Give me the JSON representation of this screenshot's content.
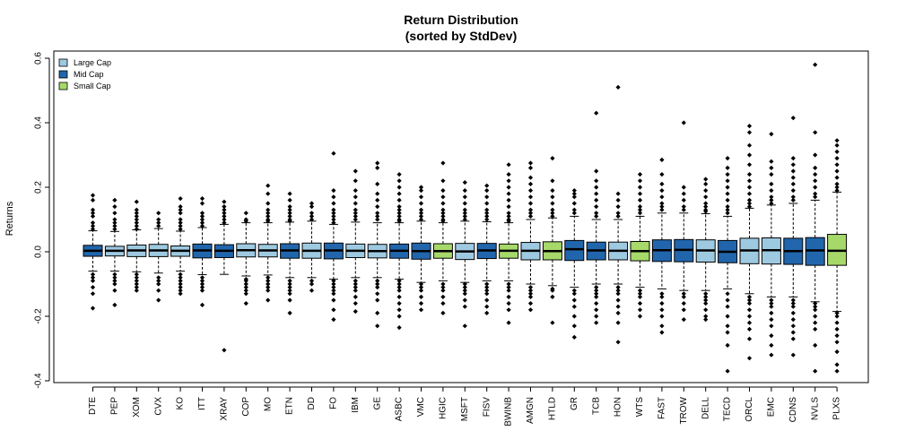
{
  "chart_data": {
    "type": "box",
    "title_line1": "Return Distribution",
    "title_line2": "(sorted by StdDev)",
    "xlabel": "",
    "ylabel": "Returns",
    "ylim": [
      -0.4,
      0.6
    ],
    "yticks": [
      -0.4,
      -0.2,
      0.0,
      0.2,
      0.4,
      0.6
    ],
    "ytick_labels": [
      "-0.4",
      "-0.2",
      "0.0",
      "0.2",
      "0.4",
      "0.6"
    ],
    "legend_position": "top-left",
    "legend": [
      {
        "name": "Large Cap",
        "color": "#9ecae1"
      },
      {
        "name": "Mid Cap",
        "color": "#2166ac"
      },
      {
        "name": "Small Cap",
        "color": "#a6d96a"
      }
    ],
    "categories": [
      "DTE",
      "PEP",
      "XOM",
      "CVX",
      "KO",
      "ITT",
      "XRAY",
      "COP",
      "MO",
      "ETN",
      "DD",
      "FO",
      "IBM",
      "GE",
      "ASBC",
      "VMC",
      "HGIC",
      "MSFT",
      "FISV",
      "BWINB",
      "AMGN",
      "HTLD",
      "GR",
      "TCB",
      "HON",
      "WTS",
      "FAST",
      "TROW",
      "DELL",
      "TECD",
      "ORCL",
      "EMC",
      "CDNS",
      "NVLS",
      "PLXS"
    ],
    "groups": [
      "Mid Cap",
      "Large Cap",
      "Large Cap",
      "Large Cap",
      "Large Cap",
      "Mid Cap",
      "Mid Cap",
      "Large Cap",
      "Large Cap",
      "Mid Cap",
      "Large Cap",
      "Mid Cap",
      "Large Cap",
      "Large Cap",
      "Mid Cap",
      "Mid Cap",
      "Small Cap",
      "Large Cap",
      "Mid Cap",
      "Small Cap",
      "Large Cap",
      "Small Cap",
      "Mid Cap",
      "Mid Cap",
      "Large Cap",
      "Small Cap",
      "Mid Cap",
      "Mid Cap",
      "Large Cap",
      "Mid Cap",
      "Large Cap",
      "Large Cap",
      "Mid Cap",
      "Mid Cap",
      "Small Cap"
    ],
    "medians": [
      0.003,
      0.003,
      0.004,
      0.004,
      0.003,
      0.004,
      0.003,
      0.005,
      0.004,
      0.004,
      0.003,
      0.004,
      0.003,
      0.002,
      0.003,
      0.002,
      0.002,
      0.001,
      0.004,
      0.003,
      0.003,
      0.002,
      0.008,
      0.004,
      0.003,
      0.002,
      0.005,
      0.006,
      0.004,
      0.0,
      0.004,
      0.005,
      0.002,
      0.004,
      0.003
    ],
    "q1": [
      -0.014,
      -0.013,
      -0.015,
      -0.015,
      -0.014,
      -0.019,
      -0.018,
      -0.016,
      -0.016,
      -0.02,
      -0.02,
      -0.022,
      -0.018,
      -0.019,
      -0.02,
      -0.023,
      -0.02,
      -0.024,
      -0.021,
      -0.02,
      -0.025,
      -0.025,
      -0.027,
      -0.025,
      -0.025,
      -0.028,
      -0.03,
      -0.031,
      -0.032,
      -0.034,
      -0.037,
      -0.038,
      -0.039,
      -0.042,
      -0.042
    ],
    "q3": [
      0.02,
      0.017,
      0.021,
      0.023,
      0.018,
      0.024,
      0.022,
      0.025,
      0.023,
      0.025,
      0.027,
      0.027,
      0.024,
      0.023,
      0.024,
      0.027,
      0.025,
      0.026,
      0.026,
      0.024,
      0.029,
      0.031,
      0.035,
      0.03,
      0.03,
      0.032,
      0.037,
      0.038,
      0.037,
      0.035,
      0.042,
      0.043,
      0.042,
      0.044,
      0.054
    ],
    "whisker_low": [
      -0.06,
      -0.06,
      -0.062,
      -0.066,
      -0.06,
      -0.071,
      -0.07,
      -0.075,
      -0.072,
      -0.08,
      -0.08,
      -0.085,
      -0.08,
      -0.08,
      -0.085,
      -0.095,
      -0.09,
      -0.095,
      -0.09,
      -0.09,
      -0.1,
      -0.105,
      -0.11,
      -0.1,
      -0.1,
      -0.11,
      -0.115,
      -0.12,
      -0.12,
      -0.115,
      -0.13,
      -0.14,
      -0.14,
      -0.155,
      -0.185
    ],
    "whisker_high": [
      0.065,
      0.063,
      0.068,
      0.072,
      0.064,
      0.075,
      0.085,
      0.09,
      0.09,
      0.092,
      0.095,
      0.085,
      0.092,
      0.09,
      0.09,
      0.095,
      0.09,
      0.095,
      0.093,
      0.09,
      0.1,
      0.105,
      0.11,
      0.1,
      0.1,
      0.11,
      0.12,
      0.12,
      0.118,
      0.11,
      0.135,
      0.145,
      0.15,
      0.16,
      0.185
    ],
    "outliers_high": [
      [
        0.175,
        0.16,
        0.13,
        0.12,
        0.11,
        0.09,
        0.08,
        0.07
      ],
      [
        0.16,
        0.14,
        0.12,
        0.1,
        0.09,
        0.08,
        0.07
      ],
      [
        0.155,
        0.13,
        0.12,
        0.11,
        0.1,
        0.09,
        0.08,
        0.07
      ],
      [
        0.12,
        0.1,
        0.09,
        0.08
      ],
      [
        0.165,
        0.14,
        0.13,
        0.12,
        0.1,
        0.09,
        0.08,
        0.07
      ],
      [
        0.165,
        0.15,
        0.12,
        0.11,
        0.1,
        0.09,
        0.08
      ],
      [
        0.155,
        0.14,
        0.13,
        0.12,
        0.11,
        0.1,
        0.09
      ],
      [
        0.12,
        0.1,
        0.095
      ],
      [
        0.205,
        0.18,
        0.15,
        0.13,
        0.12,
        0.11,
        0.1,
        0.095
      ],
      [
        0.18,
        0.16,
        0.14,
        0.13,
        0.12,
        0.11,
        0.1,
        0.095
      ],
      [
        0.15,
        0.14,
        0.12,
        0.11,
        0.1
      ],
      [
        0.305,
        0.19,
        0.17,
        0.15,
        0.13,
        0.12,
        0.11,
        0.1,
        0.09
      ],
      [
        0.25,
        0.22,
        0.19,
        0.17,
        0.15,
        0.13,
        0.12,
        0.11,
        0.1
      ],
      [
        0.275,
        0.26,
        0.21,
        0.18,
        0.16,
        0.14,
        0.12,
        0.11,
        0.1
      ],
      [
        0.24,
        0.22,
        0.2,
        0.18,
        0.16,
        0.14,
        0.13,
        0.12,
        0.11,
        0.1,
        0.095
      ],
      [
        0.2,
        0.19,
        0.17,
        0.15,
        0.13,
        0.12,
        0.11,
        0.1
      ],
      [
        0.275,
        0.22,
        0.19,
        0.17,
        0.15,
        0.13,
        0.12,
        0.11,
        0.1,
        0.095
      ],
      [
        0.215,
        0.19,
        0.17,
        0.15,
        0.13,
        0.12,
        0.11,
        0.1
      ],
      [
        0.205,
        0.19,
        0.17,
        0.15,
        0.13,
        0.12,
        0.11,
        0.1
      ],
      [
        0.27,
        0.24,
        0.22,
        0.2,
        0.18,
        0.16,
        0.14,
        0.12,
        0.11,
        0.1,
        0.095
      ],
      [
        0.275,
        0.26,
        0.23,
        0.21,
        0.19,
        0.17,
        0.15,
        0.13,
        0.12,
        0.11
      ],
      [
        0.29,
        0.22,
        0.19,
        0.17,
        0.15,
        0.13,
        0.12,
        0.11
      ],
      [
        0.19,
        0.18,
        0.17,
        0.15,
        0.13,
        0.12
      ],
      [
        0.43,
        0.25,
        0.22,
        0.2,
        0.18,
        0.16,
        0.14,
        0.12,
        0.11
      ],
      [
        0.51,
        0.18,
        0.16,
        0.14,
        0.12,
        0.11
      ],
      [
        0.24,
        0.22,
        0.2,
        0.18,
        0.16,
        0.14,
        0.13,
        0.12
      ],
      [
        0.285,
        0.24,
        0.21,
        0.19,
        0.17,
        0.15,
        0.14,
        0.13
      ],
      [
        0.4,
        0.2,
        0.18,
        0.16,
        0.14,
        0.13
      ],
      [
        0.225,
        0.21,
        0.19,
        0.17,
        0.15,
        0.14,
        0.13,
        0.125
      ],
      [
        0.29,
        0.26,
        0.24,
        0.22,
        0.2,
        0.18,
        0.16,
        0.14,
        0.13,
        0.12
      ],
      [
        0.39,
        0.37,
        0.33,
        0.3,
        0.27,
        0.24,
        0.22,
        0.2,
        0.18,
        0.16,
        0.15,
        0.14
      ],
      [
        0.365,
        0.28,
        0.26,
        0.24,
        0.21,
        0.19,
        0.17,
        0.16,
        0.15
      ],
      [
        0.415,
        0.29,
        0.27,
        0.25,
        0.23,
        0.21,
        0.19,
        0.17,
        0.16
      ],
      [
        0.58,
        0.37,
        0.3,
        0.26,
        0.24,
        0.22,
        0.2,
        0.18,
        0.17
      ],
      [
        0.345,
        0.33,
        0.31,
        0.29,
        0.27,
        0.25,
        0.23,
        0.21,
        0.2,
        0.19
      ]
    ],
    "outliers_low": [
      [
        -0.07,
        -0.08,
        -0.09,
        -0.11,
        -0.13,
        -0.175
      ],
      [
        -0.07,
        -0.08,
        -0.09,
        -0.1,
        -0.12,
        -0.165
      ],
      [
        -0.07,
        -0.08,
        -0.09,
        -0.1,
        -0.11,
        -0.12
      ],
      [
        -0.08,
        -0.09,
        -0.1,
        -0.12,
        -0.15
      ],
      [
        -0.07,
        -0.08,
        -0.09,
        -0.1,
        -0.11,
        -0.12,
        -0.13
      ],
      [
        -0.08,
        -0.09,
        -0.1,
        -0.11,
        -0.12,
        -0.165
      ],
      [
        -0.305
      ],
      [
        -0.085,
        -0.09,
        -0.1,
        -0.11,
        -0.12,
        -0.13,
        -0.16
      ],
      [
        -0.08,
        -0.09,
        -0.1,
        -0.11,
        -0.12,
        -0.15
      ],
      [
        -0.09,
        -0.1,
        -0.11,
        -0.12,
        -0.13,
        -0.15,
        -0.19
      ],
      [
        -0.09,
        -0.1,
        -0.12
      ],
      [
        -0.09,
        -0.1,
        -0.11,
        -0.12,
        -0.13,
        -0.15,
        -0.18,
        -0.21
      ],
      [
        -0.09,
        -0.1,
        -0.11,
        -0.12,
        -0.14,
        -0.16,
        -0.185
      ],
      [
        -0.09,
        -0.1,
        -0.11,
        -0.13,
        -0.15,
        -0.19,
        -0.23
      ],
      [
        -0.09,
        -0.1,
        -0.11,
        -0.12,
        -0.14,
        -0.16,
        -0.18,
        -0.2,
        -0.235
      ],
      [
        -0.1,
        -0.11,
        -0.12,
        -0.14,
        -0.16,
        -0.18
      ],
      [
        -0.1,
        -0.11,
        -0.12,
        -0.14,
        -0.16,
        -0.19
      ],
      [
        -0.1,
        -0.11,
        -0.12,
        -0.13,
        -0.15,
        -0.17,
        -0.23
      ],
      [
        -0.1,
        -0.11,
        -0.12,
        -0.13,
        -0.15,
        -0.17,
        -0.19
      ],
      [
        -0.1,
        -0.11,
        -0.12,
        -0.14,
        -0.16,
        -0.18,
        -0.22
      ],
      [
        -0.11,
        -0.12,
        -0.13,
        -0.14,
        -0.16,
        -0.18
      ],
      [
        -0.115,
        -0.12,
        -0.14,
        -0.22
      ],
      [
        -0.12,
        -0.13,
        -0.15,
        -0.17,
        -0.2,
        -0.23,
        -0.265
      ],
      [
        -0.11,
        -0.12,
        -0.13,
        -0.14,
        -0.16,
        -0.18,
        -0.2,
        -0.22
      ],
      [
        -0.11,
        -0.12,
        -0.13,
        -0.15,
        -0.17,
        -0.19,
        -0.22,
        -0.28
      ],
      [
        -0.12,
        -0.13,
        -0.14,
        -0.16,
        -0.18,
        -0.2
      ],
      [
        -0.13,
        -0.14,
        -0.16,
        -0.18,
        -0.2,
        -0.23,
        -0.25
      ],
      [
        -0.13,
        -0.14,
        -0.16,
        -0.18,
        -0.21
      ],
      [
        -0.13,
        -0.14,
        -0.15,
        -0.16,
        -0.18,
        -0.2,
        -0.21
      ],
      [
        -0.13,
        -0.15,
        -0.17,
        -0.2,
        -0.23,
        -0.25,
        -0.29,
        -0.37
      ],
      [
        -0.14,
        -0.15,
        -0.16,
        -0.18,
        -0.2,
        -0.22,
        -0.24,
        -0.27,
        -0.33
      ],
      [
        -0.15,
        -0.16,
        -0.17,
        -0.19,
        -0.21,
        -0.23,
        -0.26,
        -0.29,
        -0.32
      ],
      [
        -0.15,
        -0.16,
        -0.17,
        -0.19,
        -0.21,
        -0.23,
        -0.25,
        -0.27,
        -0.32
      ],
      [
        -0.16,
        -0.17,
        -0.18,
        -0.2,
        -0.22,
        -0.24,
        -0.29,
        -0.37
      ],
      [
        -0.19,
        -0.2,
        -0.22,
        -0.24,
        -0.26,
        -0.28,
        -0.31,
        -0.35,
        -0.37
      ]
    ]
  }
}
